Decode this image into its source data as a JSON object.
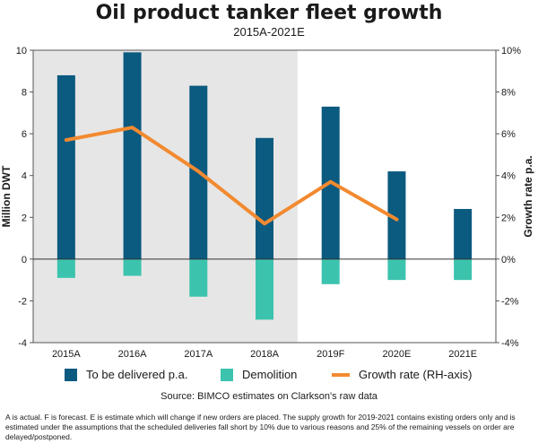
{
  "chart_data": {
    "type": "bar",
    "title": "Oil product tanker fleet growth",
    "subtitle": "2015A-2021E",
    "categories": [
      "2015A",
      "2016A",
      "2017A",
      "2018A",
      "2019F",
      "2020E",
      "2021E"
    ],
    "series": [
      {
        "name": "To be delivered p.a.",
        "type": "bar",
        "axis": "left",
        "color": "#0b5a80",
        "values": [
          8.8,
          9.9,
          8.3,
          5.8,
          7.3,
          4.2,
          2.4
        ]
      },
      {
        "name": "Demolition",
        "type": "bar",
        "axis": "left",
        "color": "#3cc3ae",
        "values": [
          -0.9,
          -0.8,
          -1.8,
          -2.9,
          -1.2,
          -1.0,
          -1.0
        ]
      },
      {
        "name": "Growth rate (RH-axis)",
        "type": "line",
        "axis": "right",
        "color": "#f28a30",
        "values": [
          5.7,
          6.3,
          4.2,
          1.7,
          3.7,
          1.9,
          null
        ]
      }
    ],
    "ylabel": "Million DWT",
    "ylabel_right": "Growth rate p.a.",
    "ylim": [
      -4,
      10
    ],
    "ylim_right": [
      -4,
      10
    ],
    "yticks": [
      -4,
      -2,
      0,
      2,
      4,
      6,
      8,
      10
    ],
    "yticks_right": [
      "-4%",
      "-2%",
      "0%",
      "2%",
      "4%",
      "6%",
      "8%",
      "10%"
    ],
    "actual_shaded_categories": [
      "2015A",
      "2016A",
      "2017A",
      "2018A"
    ],
    "shade_color": "#e6e6e6",
    "legend_position": "bottom"
  },
  "legend": [
    {
      "label": "To be delivered p.a.",
      "color": "#0b5a80"
    },
    {
      "label": "Demolition",
      "color": "#3cc3ae"
    },
    {
      "label": "Growth rate (RH-axis)",
      "color": "#f28a30"
    }
  ],
  "source": "Source: BIMCO estimates on Clarkson's raw data",
  "note": "A is actual. F is forecast. E is estimate which will change if new orders are placed. The supply growth for 2019-2021 contains existing orders only and is estimated under the assumptions that the scheduled deliveries fall short by 10% due to various reasons and 25% of the remaining vessels on order are delayed/postponed."
}
